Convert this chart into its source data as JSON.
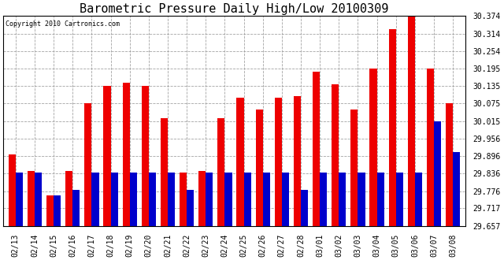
{
  "title": "Barometric Pressure Daily High/Low 20100309",
  "copyright": "Copyright 2010 Cartronics.com",
  "dates": [
    "02/13",
    "02/14",
    "02/15",
    "02/16",
    "02/17",
    "02/18",
    "02/19",
    "02/20",
    "02/21",
    "02/22",
    "02/23",
    "02/24",
    "02/25",
    "02/26",
    "02/27",
    "02/28",
    "03/01",
    "03/02",
    "03/03",
    "03/04",
    "03/05",
    "03/06",
    "03/07",
    "03/08"
  ],
  "highs": [
    29.9,
    29.845,
    29.76,
    29.845,
    30.075,
    30.135,
    30.145,
    30.135,
    30.025,
    29.84,
    29.845,
    30.025,
    30.095,
    30.055,
    30.095,
    30.1,
    30.185,
    30.14,
    30.055,
    30.195,
    30.33,
    30.374,
    30.195,
    30.075
  ],
  "lows": [
    29.84,
    29.84,
    29.76,
    29.78,
    29.84,
    29.84,
    29.84,
    29.84,
    29.84,
    29.78,
    29.84,
    29.84,
    29.84,
    29.84,
    29.84,
    29.78,
    29.84,
    29.84,
    29.84,
    29.84,
    29.84,
    29.84,
    30.015,
    29.91
  ],
  "high_color": "#EE0000",
  "low_color": "#0000CC",
  "background_color": "#FFFFFF",
  "grid_color": "#999999",
  "ylim_min": 29.657,
  "ylim_max": 30.374,
  "yticks": [
    29.657,
    29.717,
    29.776,
    29.836,
    29.896,
    29.956,
    30.015,
    30.075,
    30.135,
    30.195,
    30.254,
    30.314,
    30.374
  ],
  "bar_width": 0.38,
  "title_fontsize": 11,
  "tick_fontsize": 7,
  "copyright_fontsize": 6
}
